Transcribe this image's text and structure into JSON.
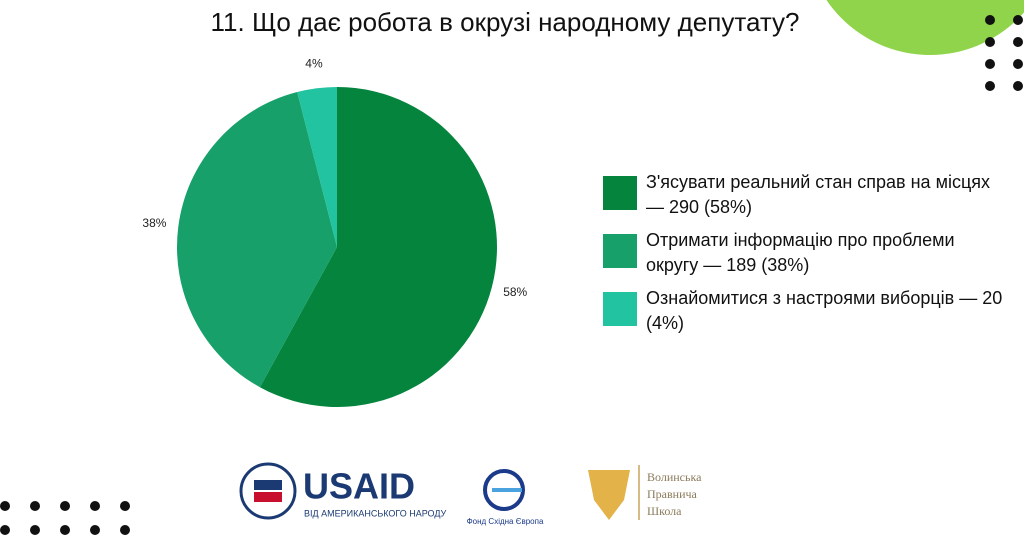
{
  "chart_data": {
    "type": "pie",
    "title": "11. Що дає робота в окрузі народному депутату?",
    "categories": [
      "З'ясувати реальний стан справ на місцях — 290 (58%)",
      "Отримати інформацію про проблеми округу — 189 (38%)",
      "Ознайомитися з настроями виборців — 20 (4%)"
    ],
    "values": [
      58,
      38,
      4
    ],
    "value_labels": [
      "58%",
      "38%",
      "4%"
    ],
    "colors": [
      "#04843d",
      "#17a069",
      "#22c3a0"
    ]
  },
  "footer": {
    "usaid": "USAID",
    "usaid_tagline": "ВІД АМЕРИКАНСЬКОГО НАРОДУ",
    "fund": "Фонд Східна Європа",
    "school": [
      "Волинська",
      "Правнича",
      "Школа"
    ]
  }
}
